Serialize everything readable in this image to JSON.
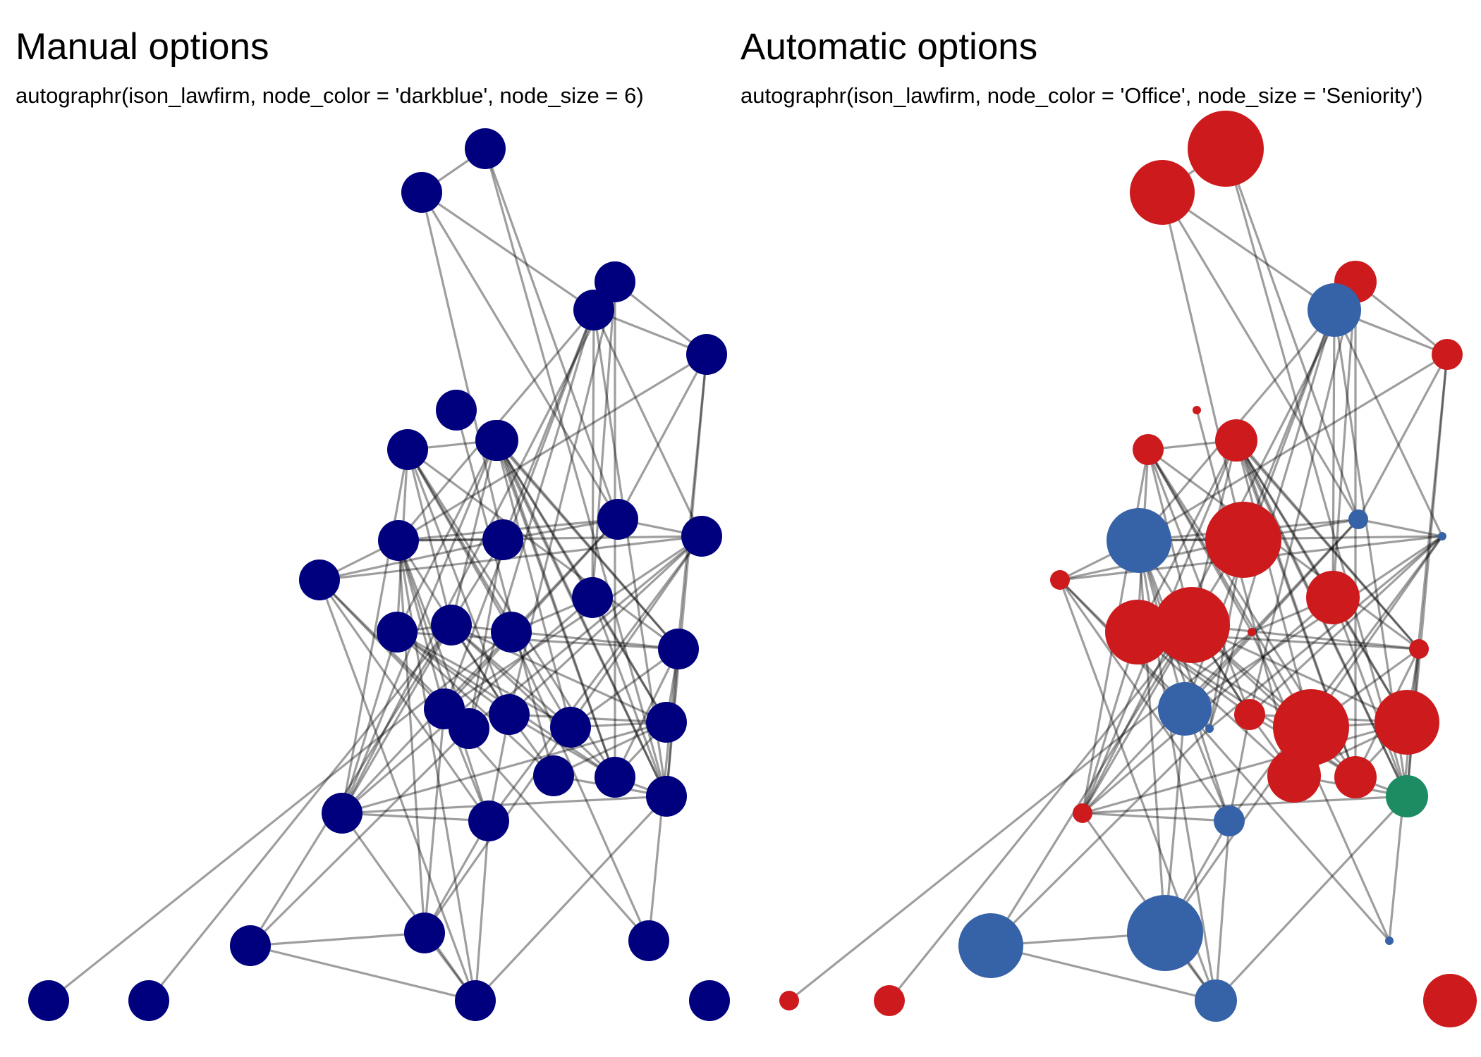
{
  "panels": {
    "manual": {
      "title": "Manual options",
      "subtitle": "autographr(ison_lawfirm, node_color = 'darkblue', node_size = 6)"
    },
    "auto": {
      "title": "Automatic options",
      "subtitle": "autographr(ison_lawfirm, node_color = 'Office', node_size = 'Seniority')"
    }
  },
  "colors": {
    "manual_node": "#00007f",
    "edge": "#000000",
    "office_1": "#cc1a1d",
    "office_2": "#3662a8",
    "office_3": "#1e8c63"
  },
  "nodes": [
    {
      "id": 1,
      "office": 1,
      "seniority": 1
    },
    {
      "id": 2,
      "office": 1,
      "seniority": 2
    },
    {
      "id": 3,
      "office": 2,
      "seniority": 3
    },
    {
      "id": 4,
      "office": 1,
      "seniority": 4
    },
    {
      "id": 5,
      "office": 2,
      "seniority": 5
    },
    {
      "id": 6,
      "office": 2,
      "seniority": 6
    },
    {
      "id": 7,
      "office": 2,
      "seniority": 7
    },
    {
      "id": 8,
      "office": 1,
      "seniority": 8
    },
    {
      "id": 9,
      "office": 2,
      "seniority": 9
    },
    {
      "id": 10,
      "office": 3,
      "seniority": 10
    },
    {
      "id": 11,
      "office": 1,
      "seniority": 11
    },
    {
      "id": 12,
      "office": 1,
      "seniority": 12
    },
    {
      "id": 13,
      "office": 1,
      "seniority": 13
    },
    {
      "id": 14,
      "office": 2,
      "seniority": 14
    },
    {
      "id": 15,
      "office": 1,
      "seniority": 15
    },
    {
      "id": 16,
      "office": 1,
      "seniority": 16
    },
    {
      "id": 17,
      "office": 1,
      "seniority": 17
    },
    {
      "id": 18,
      "office": 2,
      "seniority": 18
    },
    {
      "id": 19,
      "office": 1,
      "seniority": 19
    },
    {
      "id": 20,
      "office": 1,
      "seniority": 20
    },
    {
      "id": 21,
      "office": 1,
      "seniority": 21
    },
    {
      "id": 22,
      "office": 1,
      "seniority": 22
    },
    {
      "id": 23,
      "office": 1,
      "seniority": 23
    },
    {
      "id": 24,
      "office": 1,
      "seniority": 24
    },
    {
      "id": 25,
      "office": 1,
      "seniority": 25
    },
    {
      "id": 26,
      "office": 2,
      "seniority": 26
    },
    {
      "id": 27,
      "office": 1,
      "seniority": 27
    },
    {
      "id": 28,
      "office": 2,
      "seniority": 28
    },
    {
      "id": 29,
      "office": 2,
      "seniority": 29
    },
    {
      "id": 30,
      "office": 1,
      "seniority": 30
    },
    {
      "id": 31,
      "office": 1,
      "seniority": 31
    },
    {
      "id": 32,
      "office": 2,
      "seniority": 32
    },
    {
      "id": 33,
      "office": 1,
      "seniority": 33
    },
    {
      "id": 34,
      "office": 1,
      "seniority": 34
    },
    {
      "id": 35,
      "office": 1,
      "seniority": 35
    },
    {
      "id": 36,
      "office": 1,
      "seniority": 36
    }
  ],
  "edges": [
    [
      1,
      21
    ],
    [
      2,
      20
    ],
    [
      3,
      5
    ],
    [
      3,
      6
    ],
    [
      3,
      8
    ],
    [
      3,
      9
    ],
    [
      3,
      10
    ],
    [
      3,
      22
    ],
    [
      3,
      26
    ],
    [
      5,
      6
    ],
    [
      5,
      14
    ],
    [
      5,
      27
    ],
    [
      6,
      9
    ],
    [
      6,
      18
    ],
    [
      6,
      26
    ],
    [
      6,
      28
    ],
    [
      7,
      18
    ],
    [
      7,
      30
    ],
    [
      7,
      21
    ],
    [
      8,
      12
    ],
    [
      8,
      20
    ],
    [
      8,
      23
    ],
    [
      8,
      10
    ],
    [
      8,
      19
    ],
    [
      8,
      24
    ],
    [
      8,
      25
    ],
    [
      8,
      9
    ],
    [
      8,
      29
    ],
    [
      8,
      31
    ],
    [
      9,
      18
    ],
    [
      9,
      16
    ],
    [
      9,
      28
    ],
    [
      9,
      26
    ],
    [
      9,
      22
    ],
    [
      10,
      30
    ],
    [
      10,
      32
    ],
    [
      10,
      11
    ],
    [
      10,
      15
    ],
    [
      10,
      24
    ],
    [
      10,
      34
    ],
    [
      10,
      36
    ],
    [
      10,
      25
    ],
    [
      10,
      17
    ],
    [
      11,
      12
    ],
    [
      11,
      19
    ],
    [
      11,
      16
    ],
    [
      11,
      35
    ],
    [
      12,
      16
    ],
    [
      12,
      20
    ],
    [
      12,
      13
    ],
    [
      12,
      24
    ],
    [
      12,
      25
    ],
    [
      12,
      15
    ],
    [
      12,
      17
    ],
    [
      13,
      20
    ],
    [
      13,
      19
    ],
    [
      13,
      24
    ],
    [
      13,
      23
    ],
    [
      13,
      15
    ],
    [
      14,
      28
    ],
    [
      14,
      27
    ],
    [
      14,
      26
    ],
    [
      14,
      18
    ],
    [
      14,
      22
    ],
    [
      14,
      32
    ],
    [
      15,
      20
    ],
    [
      15,
      19
    ],
    [
      15,
      24
    ],
    [
      15,
      23
    ],
    [
      15,
      17
    ],
    [
      15,
      36
    ],
    [
      16,
      20
    ],
    [
      16,
      23
    ],
    [
      16,
      17
    ],
    [
      16,
      19
    ],
    [
      16,
      28
    ],
    [
      16,
      26
    ],
    [
      16,
      31
    ],
    [
      17,
      19
    ],
    [
      17,
      23
    ],
    [
      17,
      24
    ],
    [
      17,
      36
    ],
    [
      17,
      31
    ],
    [
      18,
      26
    ],
    [
      18,
      29
    ],
    [
      18,
      28
    ],
    [
      18,
      32
    ],
    [
      18,
      22
    ],
    [
      19,
      20
    ],
    [
      19,
      23
    ],
    [
      19,
      24
    ],
    [
      20,
      23
    ],
    [
      20,
      24
    ],
    [
      20,
      17
    ],
    [
      21,
      25
    ],
    [
      21,
      23
    ],
    [
      22,
      28
    ],
    [
      22,
      27
    ],
    [
      22,
      26
    ],
    [
      23,
      24
    ],
    [
      24,
      36
    ],
    [
      24,
      25
    ],
    [
      25,
      31
    ],
    [
      25,
      32
    ],
    [
      26,
      27
    ],
    [
      26,
      29
    ],
    [
      26,
      30
    ],
    [
      26,
      28
    ],
    [
      26,
      32
    ],
    [
      27,
      29
    ],
    [
      27,
      32
    ],
    [
      27,
      33
    ],
    [
      28,
      29
    ],
    [
      28,
      32
    ],
    [
      29,
      30
    ],
    [
      29,
      33
    ],
    [
      29,
      34
    ],
    [
      30,
      31
    ],
    [
      30,
      32
    ],
    [
      31,
      32
    ],
    [
      32,
      33
    ],
    [
      33,
      34
    ]
  ]
}
